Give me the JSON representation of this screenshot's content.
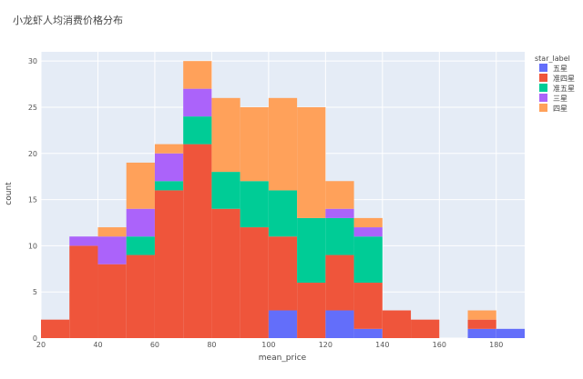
{
  "chart_data": {
    "type": "bar",
    "mode": "stacked-histogram",
    "title": "小龙虾人均消费价格分布",
    "xlabel": "mean_price",
    "ylabel": "count",
    "xlim": [
      20,
      190
    ],
    "ylim": [
      0,
      31
    ],
    "x_ticks": [
      20,
      40,
      60,
      80,
      100,
      120,
      140,
      160,
      180
    ],
    "y_ticks": [
      0,
      5,
      10,
      15,
      20,
      25,
      30
    ],
    "grid": true,
    "legend_placement": "top-right",
    "legend_title": "star_label",
    "bins": [
      [
        20,
        30
      ],
      [
        30,
        40
      ],
      [
        40,
        50
      ],
      [
        50,
        60
      ],
      [
        60,
        70
      ],
      [
        70,
        80
      ],
      [
        80,
        90
      ],
      [
        90,
        100
      ],
      [
        100,
        110
      ],
      [
        110,
        120
      ],
      [
        120,
        130
      ],
      [
        130,
        140
      ],
      [
        140,
        150
      ],
      [
        150,
        160
      ],
      [
        160,
        170
      ],
      [
        170,
        180
      ],
      [
        180,
        190
      ]
    ],
    "series": [
      {
        "name": "五星",
        "color": "#636efa",
        "values": [
          0,
          0,
          0,
          0,
          0,
          0,
          0,
          0,
          3,
          0,
          3,
          1,
          0,
          0,
          0,
          1,
          1
        ]
      },
      {
        "name": "准四星",
        "color": "#ef553b",
        "values": [
          2,
          10,
          8,
          9,
          16,
          21,
          14,
          12,
          8,
          6,
          6,
          5,
          3,
          2,
          0,
          1,
          0
        ]
      },
      {
        "name": "准五星",
        "color": "#00cc96",
        "values": [
          0,
          0,
          0,
          2,
          1,
          3,
          4,
          5,
          5,
          7,
          4,
          5,
          0,
          0,
          0,
          0,
          0
        ]
      },
      {
        "name": "三星",
        "color": "#ab63fa",
        "values": [
          0,
          1,
          3,
          3,
          3,
          3,
          0,
          0,
          0,
          0,
          1,
          1,
          0,
          0,
          0,
          0,
          0
        ]
      },
      {
        "name": "四星",
        "color": "#ffa15a",
        "values": [
          0,
          0,
          1,
          5,
          1,
          3,
          8,
          8,
          10,
          12,
          3,
          1,
          0,
          0,
          0,
          1,
          0
        ]
      }
    ]
  }
}
